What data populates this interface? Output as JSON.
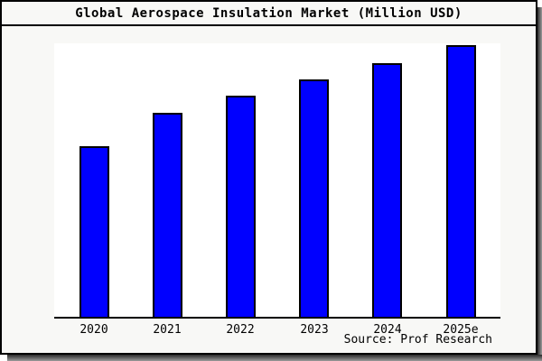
{
  "header": {
    "title": "Global Aerospace Insulation Market (Million USD)"
  },
  "footer": {
    "source": "Source: Prof Research"
  },
  "colors": {
    "bar_fill": "#0000ff",
    "bar_border": "#000000",
    "axis": "#000000",
    "page_bg": "#f8f8f6",
    "plot_bg": "#ffffff",
    "frame_border": "#000000",
    "shadow": "#8c8c8c"
  },
  "chart_data": {
    "type": "bar",
    "title": "Global Aerospace Insulation Market (Million USD)",
    "categories": [
      "2020",
      "2021",
      "2022",
      "2023",
      "2024",
      "2025e"
    ],
    "values": [
      189,
      226,
      245,
      263,
      281,
      301
    ],
    "xlabel": "",
    "ylabel": "",
    "ylim": [
      0,
      305
    ],
    "y_axis_ticks": [],
    "grid": false,
    "legend": false,
    "bar_color": "#0000ff",
    "annotation": "Source: Prof Research"
  }
}
